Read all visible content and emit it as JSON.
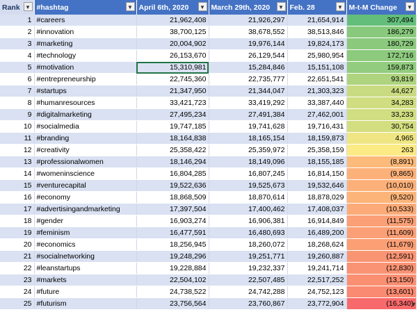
{
  "headers": {
    "rank": "Rank",
    "hashtag": "#hashtag",
    "apr": "April 6th, 2020",
    "mar": "March 29th, 2020",
    "feb": "Feb. 28",
    "change": "M-t-M Change"
  },
  "colors": {
    "header_bg": "#4472c4",
    "band": "#d9e1f2",
    "scale_green": "#63be7b",
    "scale_yellow": "#ffeb84",
    "scale_red": "#f8696b"
  },
  "rows": [
    {
      "rank": "1",
      "tag": "#careers",
      "apr": "21,962,408",
      "mar": "21,926,297",
      "feb": "21,654,914",
      "chg": "307,494",
      "v": 307494
    },
    {
      "rank": "2",
      "tag": "#innovation",
      "apr": "38,700,125",
      "mar": "38,678,552",
      "feb": "38,513,846",
      "chg": "186,279",
      "v": 186279
    },
    {
      "rank": "3",
      "tag": "#marketing",
      "apr": "20,004,902",
      "mar": "19,976,144",
      "feb": "19,824,173",
      "chg": "180,729",
      "v": 180729
    },
    {
      "rank": "4",
      "tag": "#technology",
      "apr": "26,153,670",
      "mar": "26,129,544",
      "feb": "25,980,954",
      "chg": "172,716",
      "v": 172716
    },
    {
      "rank": "5",
      "tag": "#motivation",
      "apr": "15,310,981",
      "mar": "15,284,846",
      "feb": "15,151,108",
      "chg": "159,873",
      "v": 159873
    },
    {
      "rank": "6",
      "tag": "#entrepreneurship",
      "apr": "22,745,360",
      "mar": "22,735,777",
      "feb": "22,651,541",
      "chg": "93,819",
      "v": 93819
    },
    {
      "rank": "7",
      "tag": "#startups",
      "apr": "21,347,950",
      "mar": "21,344,047",
      "feb": "21,303,323",
      "chg": "44,627",
      "v": 44627
    },
    {
      "rank": "8",
      "tag": "#humanresources",
      "apr": "33,421,723",
      "mar": "33,419,292",
      "feb": "33,387,440",
      "chg": "34,283",
      "v": 34283
    },
    {
      "rank": "9",
      "tag": "#digitalmarketing",
      "apr": "27,495,234",
      "mar": "27,491,384",
      "feb": "27,462,001",
      "chg": "33,233",
      "v": 33233
    },
    {
      "rank": "10",
      "tag": "#socialmedia",
      "apr": "19,747,185",
      "mar": "19,741,628",
      "feb": "19,716,431",
      "chg": "30,754",
      "v": 30754
    },
    {
      "rank": "11",
      "tag": "#branding",
      "apr": "18,164,838",
      "mar": "18,165,154",
      "feb": "18,159,873",
      "chg": "4,965",
      "v": 4965
    },
    {
      "rank": "12",
      "tag": "#creativity",
      "apr": "25,358,422",
      "mar": "25,359,972",
      "feb": "25,358,159",
      "chg": "263",
      "v": 263
    },
    {
      "rank": "13",
      "tag": "#professionalwomen",
      "apr": "18,146,294",
      "mar": "18,149,096",
      "feb": "18,155,185",
      "chg": "(8,891)",
      "v": -8891
    },
    {
      "rank": "14",
      "tag": "#womeninscience",
      "apr": "16,804,285",
      "mar": "16,807,245",
      "feb": "16,814,150",
      "chg": "(9,865)",
      "v": -9865
    },
    {
      "rank": "15",
      "tag": "#venturecapital",
      "apr": "19,522,636",
      "mar": "19,525,673",
      "feb": "19,532,646",
      "chg": "(10,010)",
      "v": -10010
    },
    {
      "rank": "16",
      "tag": "#economy",
      "apr": "18,868,509",
      "mar": "18,870,614",
      "feb": "18,878,029",
      "chg": "(9,520)",
      "v": -9520
    },
    {
      "rank": "17",
      "tag": "#advertisingandmarketing",
      "apr": "17,397,504",
      "mar": "17,400,462",
      "feb": "17,408,037",
      "chg": "(10,533)",
      "v": -10533
    },
    {
      "rank": "18",
      "tag": "#gender",
      "apr": "16,903,274",
      "mar": "16,906,381",
      "feb": "16,914,849",
      "chg": "(11,575)",
      "v": -11575
    },
    {
      "rank": "19",
      "tag": "#feminism",
      "apr": "16,477,591",
      "mar": "16,480,693",
      "feb": "16,489,200",
      "chg": "(11,609)",
      "v": -11609
    },
    {
      "rank": "20",
      "tag": "#economics",
      "apr": "18,256,945",
      "mar": "18,260,072",
      "feb": "18,268,624",
      "chg": "(11,679)",
      "v": -11679
    },
    {
      "rank": "21",
      "tag": "#socialnetworking",
      "apr": "19,248,296",
      "mar": "19,251,771",
      "feb": "19,260,887",
      "chg": "(12,591)",
      "v": -12591
    },
    {
      "rank": "22",
      "tag": "#leanstartups",
      "apr": "19,228,884",
      "mar": "19,232,337",
      "feb": "19,241,714",
      "chg": "(12,830)",
      "v": -12830
    },
    {
      "rank": "23",
      "tag": "#markets",
      "apr": "22,504,102",
      "mar": "22,507,485",
      "feb": "22,517,252",
      "chg": "(13,150)",
      "v": -13150
    },
    {
      "rank": "24",
      "tag": "#future",
      "apr": "24,738,522",
      "mar": "24,742,288",
      "feb": "24,752,123",
      "chg": "(13,601)",
      "v": -13601
    },
    {
      "rank": "25",
      "tag": "#futurism",
      "apr": "23,756,564",
      "mar": "23,760,867",
      "feb": "23,772,904",
      "chg": "(16,340)",
      "v": -16340
    }
  ]
}
